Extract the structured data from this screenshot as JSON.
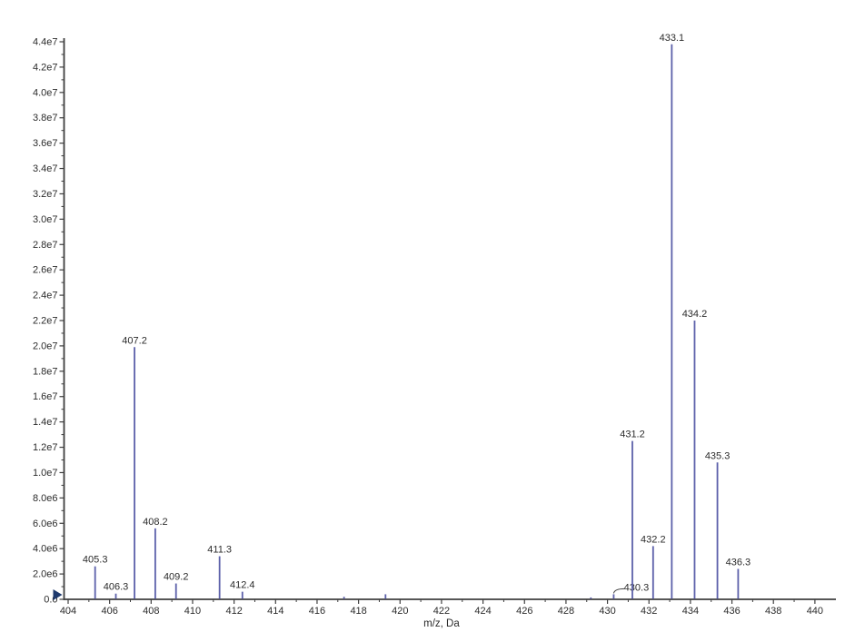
{
  "chart_data": {
    "type": "bar",
    "subtype": "mass-spectrum-sticks",
    "title": "",
    "xlabel": "m/z, Da",
    "ylabel": "",
    "xlim": [
      404,
      441
    ],
    "ylim": [
      0,
      44000000
    ],
    "grid": false,
    "legend": false,
    "x_major_ticks": [
      404,
      406,
      408,
      410,
      412,
      414,
      416,
      418,
      420,
      422,
      424,
      426,
      428,
      430,
      432,
      434,
      436,
      438,
      440
    ],
    "x_minor_ticks": [
      405,
      407,
      409,
      411,
      413,
      415,
      417,
      419,
      421,
      423,
      425,
      427,
      429,
      431,
      433,
      435,
      437,
      439
    ],
    "y_ticks": [
      {
        "value": 0,
        "label": "0.0"
      },
      {
        "value": 2000000,
        "label": "2.0e6"
      },
      {
        "value": 4000000,
        "label": "4.0e6"
      },
      {
        "value": 6000000,
        "label": "6.0e6"
      },
      {
        "value": 8000000,
        "label": "8.0e6"
      },
      {
        "value": 10000000,
        "label": "1.0e7"
      },
      {
        "value": 12000000,
        "label": "1.2e7"
      },
      {
        "value": 14000000,
        "label": "1.4e7"
      },
      {
        "value": 16000000,
        "label": "1.6e7"
      },
      {
        "value": 18000000,
        "label": "1.8e7"
      },
      {
        "value": 20000000,
        "label": "2.0e7"
      },
      {
        "value": 22000000,
        "label": "2.2e7"
      },
      {
        "value": 24000000,
        "label": "2.4e7"
      },
      {
        "value": 26000000,
        "label": "2.6e7"
      },
      {
        "value": 28000000,
        "label": "2.8e7"
      },
      {
        "value": 30000000,
        "label": "3.0e7"
      },
      {
        "value": 32000000,
        "label": "3.2e7"
      },
      {
        "value": 34000000,
        "label": "3.4e7"
      },
      {
        "value": 36000000,
        "label": "3.6e7"
      },
      {
        "value": 38000000,
        "label": "3.8e7"
      },
      {
        "value": 40000000,
        "label": "4.0e7"
      },
      {
        "value": 42000000,
        "label": "4.2e7"
      },
      {
        "value": 44000000,
        "label": "4.4e7"
      }
    ],
    "y_minor_step": 1000000,
    "peaks": [
      {
        "mz": 405.3,
        "intensity": 2600000,
        "label": "405.3"
      },
      {
        "mz": 406.3,
        "intensity": 450000,
        "label": "406.3"
      },
      {
        "mz": 407.2,
        "intensity": 19900000,
        "label": "407.2"
      },
      {
        "mz": 408.2,
        "intensity": 5600000,
        "label": "408.2"
      },
      {
        "mz": 409.2,
        "intensity": 1250000,
        "label": "409.2"
      },
      {
        "mz": 411.3,
        "intensity": 3400000,
        "label": "411.3"
      },
      {
        "mz": 412.4,
        "intensity": 600000,
        "label": "412.4"
      },
      {
        "mz": 417.3,
        "intensity": 200000,
        "label": ""
      },
      {
        "mz": 419.3,
        "intensity": 400000,
        "label": ""
      },
      {
        "mz": 429.2,
        "intensity": 150000,
        "label": ""
      },
      {
        "mz": 430.3,
        "intensity": 400000,
        "label": "430.3",
        "label_offset_x": 25,
        "leader": true
      },
      {
        "mz": 431.2,
        "intensity": 12500000,
        "label": "431.2"
      },
      {
        "mz": 432.2,
        "intensity": 4200000,
        "label": "432.2"
      },
      {
        "mz": 433.1,
        "intensity": 43800000,
        "label": "433.1"
      },
      {
        "mz": 434.2,
        "intensity": 22000000,
        "label": "434.2"
      },
      {
        "mz": 435.3,
        "intensity": 10800000,
        "label": "435.3"
      },
      {
        "mz": 436.3,
        "intensity": 2400000,
        "label": "436.3"
      }
    ],
    "origin_marker": "right-pointing-triangle"
  },
  "colors": {
    "peak": "#5c60aa",
    "axis": "#3f3f3f",
    "text": "#2b2b2b",
    "origin_marker": "#1e3a6e",
    "background": "#ffffff"
  }
}
